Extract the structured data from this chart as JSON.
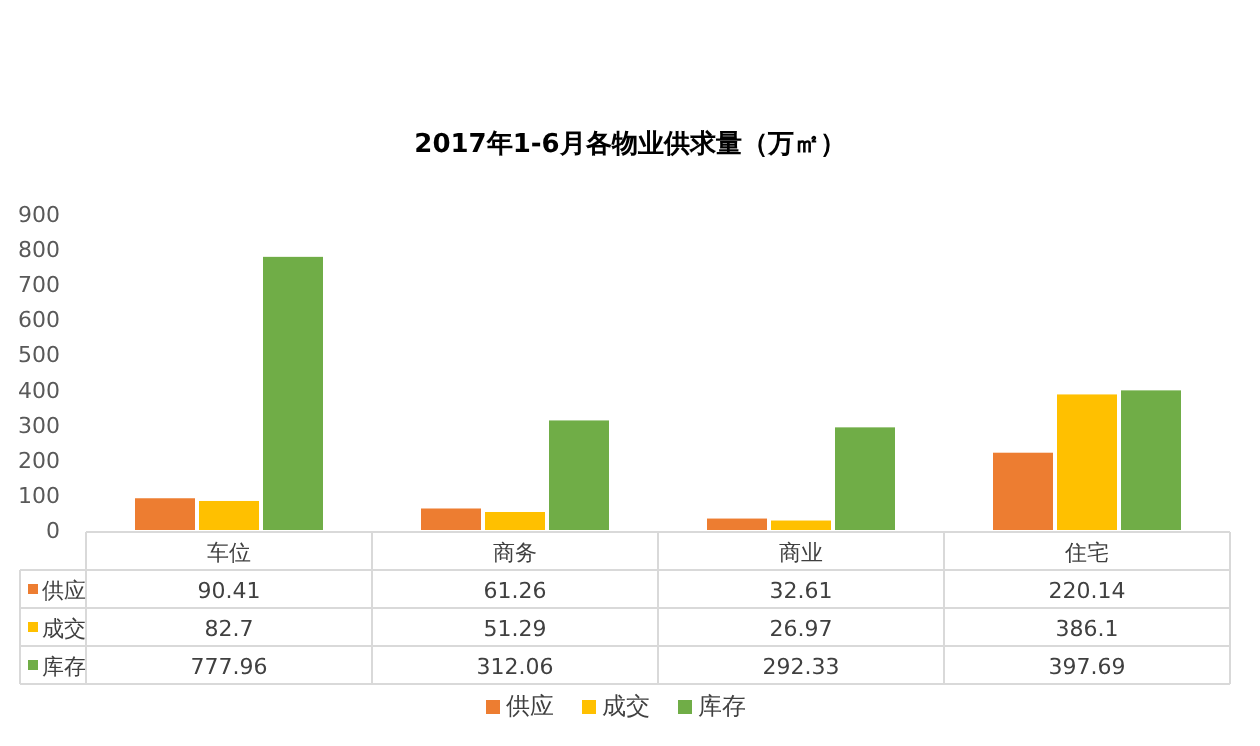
{
  "chart_data": {
    "type": "bar",
    "title": "2017年1-6月各物业供求量（万㎡）",
    "categories": [
      "车位",
      "商务",
      "商业",
      "住宅"
    ],
    "series": [
      {
        "name": "供应",
        "color": "#ed7d31",
        "values": [
          90.41,
          61.26,
          32.61,
          220.14
        ]
      },
      {
        "name": "成交",
        "color": "#ffc000",
        "values": [
          82.7,
          51.29,
          26.97,
          386.1
        ]
      },
      {
        "name": "库存",
        "color": "#70ad47",
        "values": [
          777.96,
          312.06,
          292.33,
          397.69
        ]
      }
    ],
    "ylim": [
      0,
      900
    ],
    "yticks": [
      0,
      100,
      200,
      300,
      400,
      500,
      600,
      700,
      800,
      900
    ],
    "data_labels": true,
    "legend": "bottom"
  }
}
